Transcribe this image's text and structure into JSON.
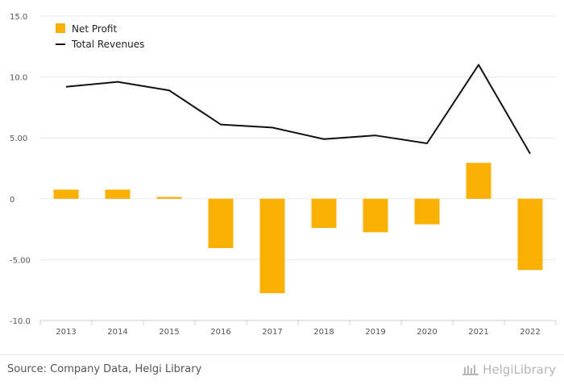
{
  "chart_data": {
    "type": "bar+line",
    "categories": [
      "2013",
      "2014",
      "2015",
      "2016",
      "2017",
      "2018",
      "2019",
      "2020",
      "2021",
      "2022"
    ],
    "series": [
      {
        "name": "Net Profit",
        "type": "bar",
        "color": "#F9B000",
        "values": [
          0.75,
          0.75,
          0.15,
          -4.05,
          -7.75,
          -2.4,
          -2.75,
          -2.1,
          2.95,
          -5.85
        ]
      },
      {
        "name": "Total Revenues",
        "type": "line",
        "color": "#111111",
        "values": [
          9.2,
          9.6,
          8.9,
          6.1,
          5.85,
          4.9,
          5.2,
          4.55,
          11.0,
          3.7
        ]
      }
    ],
    "ylim": [
      -10,
      15
    ],
    "yticks": [
      {
        "value": 15,
        "label": "15.0"
      },
      {
        "value": 10,
        "label": "10.0"
      },
      {
        "value": 5,
        "label": "5.00"
      },
      {
        "value": 0,
        "label": "0"
      },
      {
        "value": -5,
        "label": "-5.00"
      },
      {
        "value": -10,
        "label": "-10.0"
      }
    ],
    "grid": true,
    "legend_position": "top-left"
  },
  "footer": {
    "source": "Source: Company Data, Helgi Library",
    "brand": "HelgiLibrary"
  }
}
